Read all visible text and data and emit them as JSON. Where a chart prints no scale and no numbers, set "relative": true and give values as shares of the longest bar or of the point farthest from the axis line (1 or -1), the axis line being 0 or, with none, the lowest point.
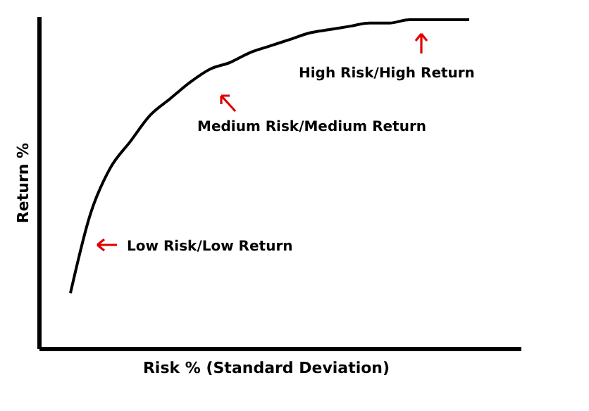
{
  "chart_data": {
    "type": "line",
    "relative": true,
    "xlabel": "Risk % (Standard Deviation)",
    "ylabel": "Return %",
    "categories": [
      null,
      null,
      null,
      null,
      null,
      null,
      null,
      null,
      null,
      null,
      null,
      null,
      null,
      null,
      null,
      null,
      null,
      null,
      null,
      null,
      null
    ],
    "series": [
      {
        "color": "#000000",
        "values": [
          0.17,
          0.41,
          0.55,
          0.63,
          0.71,
          0.76,
          0.81,
          0.85,
          0.87,
          0.9,
          0.92,
          0.94,
          0.96,
          0.97,
          0.98,
          0.99,
          0.99,
          1.0,
          1.0,
          1.0,
          1.0
        ]
      }
    ],
    "annotations": [
      "Low Risk/Low Return",
      "Medium Risk/Medium Return",
      "High Risk/High Return"
    ],
    "marker": "none",
    "line_style": "solid"
  }
}
